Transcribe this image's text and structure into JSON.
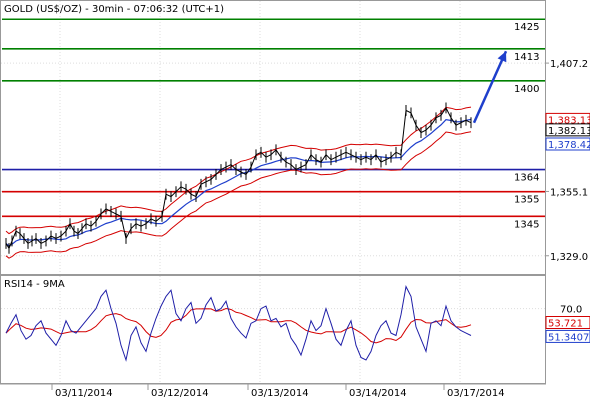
{
  "chart_data": [
    {
      "type": "line",
      "title": "GOLD (US$/OZ) - 30min - 07:06:32 (UTC+1)",
      "price_ticks": [
        "1,407.2",
        "1,355.1",
        "1,329.0"
      ],
      "price_tick_values": [
        1407.2,
        1355.1,
        1329.0
      ],
      "date_labels": [
        "03/11/2014",
        "03/12/2014",
        "03/13/2014",
        "03/14/2014",
        "03/17/2014"
      ],
      "grid": true,
      "ylim": [
        1322,
        1432
      ],
      "levels": [
        {
          "label": "1425",
          "value": 1425,
          "color": "#008000"
        },
        {
          "label": "1413",
          "value": 1413,
          "color": "#008000"
        },
        {
          "label": "1400",
          "value": 1400,
          "color": "#008000"
        },
        {
          "label": "1364",
          "value": 1364,
          "color": "#1f1fa8"
        },
        {
          "label": "1355",
          "value": 1355,
          "color": "#d40000"
        },
        {
          "label": "1345",
          "value": 1345,
          "color": "#d40000"
        }
      ],
      "price_badges": [
        {
          "label": "1,383.13",
          "value": 1383.13,
          "color": "#d40000"
        },
        {
          "label": "1,382.13",
          "value": 1382.13,
          "color": "#000000"
        },
        {
          "label": "1,378.42",
          "value": 1378.42,
          "color": "#1f3fcc"
        }
      ],
      "price_series": {
        "x": [
          0,
          3,
          6,
          10,
          14,
          18,
          22,
          26,
          30,
          35,
          40,
          45,
          50,
          55,
          60,
          64,
          68,
          72,
          76,
          80,
          85,
          90,
          95,
          100,
          105,
          110,
          115,
          120,
          125,
          130,
          135,
          140,
          145,
          150,
          156,
          160,
          165,
          170,
          175,
          180,
          185,
          190,
          195,
          200,
          205,
          210,
          215,
          220,
          225,
          230,
          235,
          240,
          245,
          250,
          255,
          260,
          265,
          270,
          275,
          280,
          285,
          290,
          295,
          300,
          305,
          310,
          315,
          320,
          325,
          330,
          335,
          340,
          345,
          350,
          355,
          360,
          365,
          370,
          375,
          380,
          385,
          390,
          395,
          400,
          405,
          410,
          415,
          420,
          425,
          430,
          435,
          440,
          445,
          450,
          455,
          460,
          465
        ],
        "y": [
          1334,
          1332,
          1335,
          1339,
          1338,
          1336,
          1334,
          1335,
          1336,
          1334,
          1335,
          1337,
          1336,
          1337,
          1339,
          1342,
          1339,
          1338,
          1340,
          1342,
          1341,
          1343,
          1346,
          1348,
          1347,
          1346,
          1345,
          1336,
          1340,
          1342,
          1341,
          1342,
          1344,
          1343,
          1345,
          1354,
          1353,
          1355,
          1357,
          1356,
          1354,
          1353,
          1358,
          1359,
          1360,
          1362,
          1364,
          1365,
          1366,
          1364,
          1363,
          1362,
          1365,
          1370,
          1371,
          1369,
          1370,
          1372,
          1369,
          1367,
          1366,
          1364,
          1365,
          1366,
          1370,
          1368,
          1367,
          1370,
          1368,
          1369,
          1370,
          1371,
          1370,
          1369,
          1368,
          1369,
          1368,
          1370,
          1367,
          1368,
          1369,
          1371,
          1370,
          1388,
          1387,
          1382,
          1379,
          1380,
          1382,
          1385,
          1386,
          1389,
          1385,
          1382,
          1383,
          1384,
          1383
        ]
      },
      "forecast_arrow": {
        "from": [
          468,
          1383
        ],
        "to": [
          500,
          1412
        ]
      }
    },
    {
      "type": "line",
      "title": "RSI14 - 9MA",
      "rsi_ticks": [
        "70.0"
      ],
      "rsi_tick_values": [
        70.0
      ],
      "ylim": [
        10,
        95
      ],
      "badges": [
        {
          "label": "53.721",
          "value": 53.721,
          "color": "#d40000"
        },
        {
          "label": "51.3407",
          "value": 51.3407,
          "color": "#1f3fcc"
        }
      ],
      "rsi_series": {
        "x": [
          0,
          5,
          10,
          15,
          20,
          25,
          30,
          35,
          40,
          45,
          50,
          55,
          60,
          65,
          70,
          75,
          80,
          85,
          90,
          95,
          100,
          105,
          110,
          115,
          120,
          125,
          130,
          135,
          140,
          145,
          150,
          155,
          160,
          165,
          170,
          175,
          180,
          185,
          190,
          195,
          200,
          205,
          210,
          215,
          220,
          225,
          230,
          235,
          240,
          245,
          250,
          255,
          260,
          265,
          270,
          275,
          280,
          285,
          290,
          295,
          300,
          305,
          310,
          315,
          320,
          325,
          330,
          335,
          340,
          345,
          350,
          355,
          360,
          365,
          370,
          375,
          380,
          385,
          390,
          395,
          400,
          405,
          410,
          415,
          420,
          425,
          430,
          435,
          440,
          445,
          450,
          455,
          460,
          465
        ],
        "y": [
          50,
          58,
          65,
          52,
          45,
          48,
          56,
          60,
          50,
          45,
          40,
          48,
          60,
          52,
          50,
          55,
          60,
          65,
          70,
          80,
          85,
          70,
          58,
          40,
          28,
          48,
          55,
          42,
          35,
          50,
          62,
          72,
          80,
          85,
          66,
          60,
          70,
          75,
          58,
          62,
          73,
          79,
          68,
          70,
          76,
          62,
          55,
          50,
          46,
          58,
          60,
          70,
          72,
          60,
          62,
          55,
          58,
          46,
          40,
          32,
          45,
          60,
          52,
          56,
          70,
          58,
          45,
          40,
          52,
          60,
          40,
          30,
          28,
          35,
          48,
          56,
          60,
          50,
          48,
          65,
          88,
          80,
          55,
          45,
          35,
          58,
          60,
          56,
          72,
          60,
          55,
          52,
          50,
          48
        ]
      }
    }
  ]
}
